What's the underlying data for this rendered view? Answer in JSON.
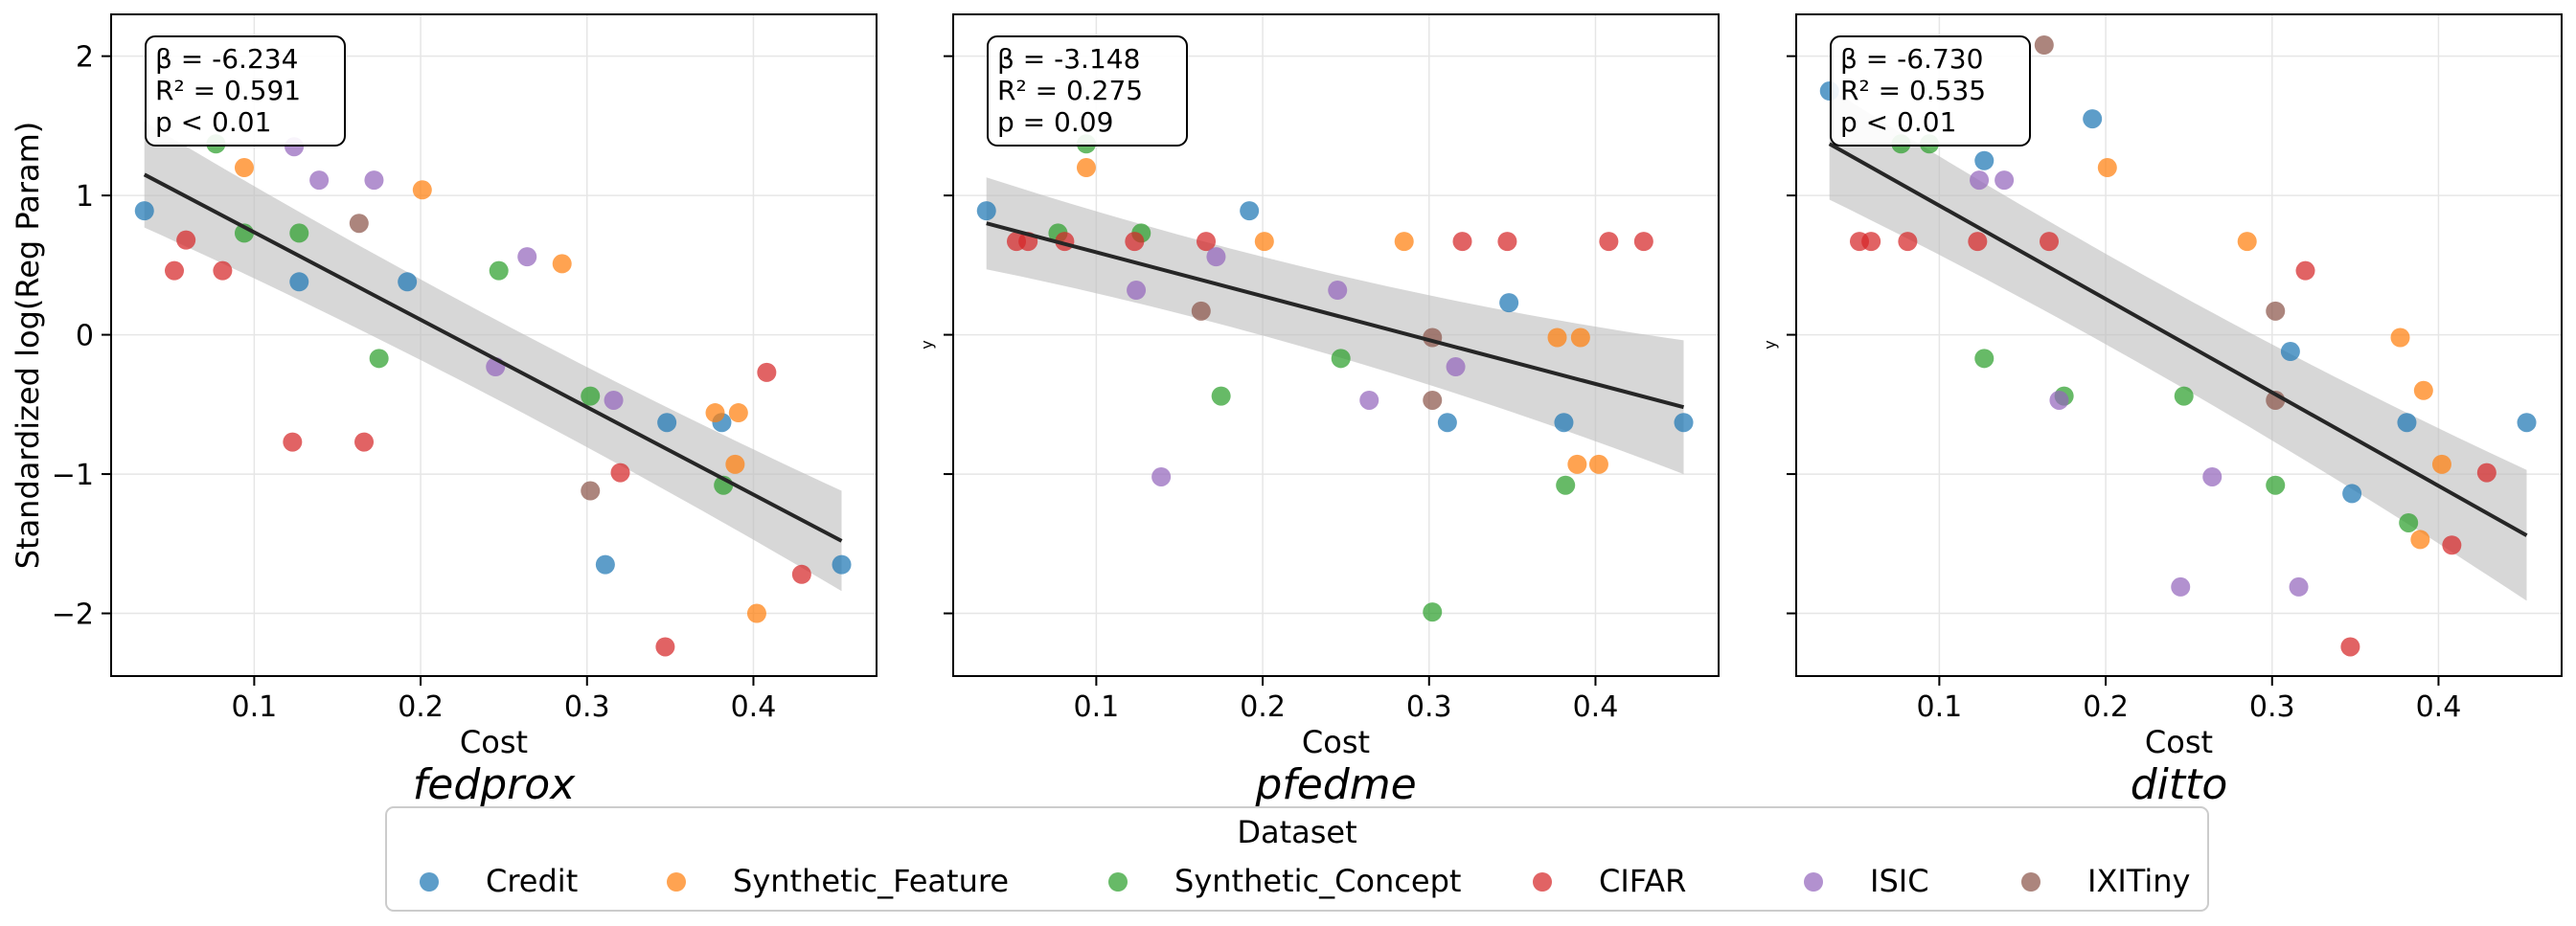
{
  "chart_data": [
    {
      "type": "scatter",
      "title": "fedprox",
      "xlabel": "Cost",
      "ylabel": "Standardized log(Reg Param)",
      "xlim": [
        0.014,
        0.474
      ],
      "ylim": [
        -2.45,
        2.3
      ],
      "xticks": [
        0.1,
        0.2,
        0.3,
        0.4
      ],
      "yticks": [
        -2,
        -1,
        0,
        1,
        2
      ],
      "xtick_labels": [
        "0.1",
        "0.2",
        "0.3",
        "0.4"
      ],
      "ytick_labels": [
        "−2",
        "−1",
        "0",
        "1",
        "2"
      ],
      "grid": true,
      "stats": [
        "β = -6.234",
        "R² = 0.591",
        "p < 0.01"
      ],
      "fit": {
        "x": [
          0.034,
          0.453
        ],
        "y": [
          1.15,
          -1.48
        ],
        "band_half_width": [
          0.38,
          0.36
        ]
      },
      "series": [
        {
          "name": "Credit",
          "x": [
            0.034,
            0.127,
            0.192,
            0.311,
            0.348,
            0.381,
            0.453
          ],
          "y": [
            0.89,
            0.38,
            0.38,
            -1.65,
            -0.63,
            -0.63,
            -1.65
          ]
        },
        {
          "name": "Synthetic_Feature",
          "x": [
            0.094,
            0.201,
            0.285,
            0.377,
            0.389,
            0.391,
            0.402
          ],
          "y": [
            1.2,
            1.04,
            0.51,
            -0.56,
            -0.93,
            -0.56,
            -2.0
          ]
        },
        {
          "name": "Synthetic_Concept",
          "x": [
            0.077,
            0.094,
            0.127,
            0.175,
            0.247,
            0.302,
            0.382
          ],
          "y": [
            1.37,
            0.73,
            0.73,
            -0.17,
            0.46,
            -0.44,
            -1.08
          ]
        },
        {
          "name": "CIFAR",
          "x": [
            0.052,
            0.059,
            0.081,
            0.123,
            0.166,
            0.32,
            0.347,
            0.408,
            0.429
          ],
          "y": [
            0.46,
            0.68,
            0.46,
            -0.77,
            -0.77,
            -0.99,
            -2.24,
            -0.27,
            -1.72
          ]
        },
        {
          "name": "ISIC",
          "x": [
            0.124,
            0.139,
            0.172,
            0.245,
            0.264,
            0.316
          ],
          "y": [
            1.35,
            1.11,
            1.11,
            -0.23,
            0.56,
            -0.47
          ]
        },
        {
          "name": "IXITiny",
          "x": [
            0.163,
            0.302
          ],
          "y": [
            0.8,
            -1.12
          ]
        }
      ]
    },
    {
      "type": "scatter",
      "title": "pfedme",
      "xlabel": "Cost",
      "ylabel": "y",
      "xlim": [
        0.014,
        0.474
      ],
      "ylim": [
        -2.45,
        2.3
      ],
      "xticks": [
        0.1,
        0.2,
        0.3,
        0.4
      ],
      "yticks": [
        -2,
        -1,
        0,
        1,
        2
      ],
      "xtick_labels": [
        "0.1",
        "0.2",
        "0.3",
        "0.4"
      ],
      "ytick_labels": [],
      "grid": true,
      "stats": [
        "β = -3.148",
        "R² = 0.275",
        "p = 0.09"
      ],
      "fit": {
        "x": [
          0.034,
          0.453
        ],
        "y": [
          0.8,
          -0.52
        ],
        "band_half_width": [
          0.33,
          0.48
        ]
      },
      "series": [
        {
          "name": "Credit",
          "x": [
            0.034,
            0.192,
            0.311,
            0.348,
            0.381,
            0.453
          ],
          "y": [
            0.89,
            0.89,
            -0.63,
            0.23,
            -0.63,
            -0.63
          ]
        },
        {
          "name": "Synthetic_Feature",
          "x": [
            0.094,
            0.201,
            0.285,
            0.377,
            0.389,
            0.391,
            0.402
          ],
          "y": [
            1.2,
            0.67,
            0.67,
            -0.02,
            -0.93,
            -0.02,
            -0.93
          ]
        },
        {
          "name": "Synthetic_Concept",
          "x": [
            0.077,
            0.094,
            0.127,
            0.175,
            0.247,
            0.302,
            0.382
          ],
          "y": [
            0.73,
            1.37,
            0.73,
            -0.44,
            -0.17,
            -1.99,
            -1.08
          ]
        },
        {
          "name": "CIFAR",
          "x": [
            0.052,
            0.059,
            0.081,
            0.123,
            0.166,
            0.32,
            0.347,
            0.408,
            0.429
          ],
          "y": [
            0.67,
            0.67,
            0.67,
            0.67,
            0.67,
            0.67,
            0.67,
            0.67,
            0.67
          ]
        },
        {
          "name": "ISIC",
          "x": [
            0.124,
            0.139,
            0.172,
            0.245,
            0.264,
            0.316
          ],
          "y": [
            0.32,
            -1.02,
            0.56,
            0.32,
            -0.47,
            -0.23
          ]
        },
        {
          "name": "IXITiny",
          "x": [
            0.163,
            0.302,
            0.302
          ],
          "y": [
            0.17,
            -0.02,
            -0.47
          ]
        }
      ]
    },
    {
      "type": "scatter",
      "title": "ditto",
      "xlabel": "Cost",
      "ylabel": "y",
      "xlim": [
        0.014,
        0.474
      ],
      "ylim": [
        -2.45,
        2.3
      ],
      "xticks": [
        0.1,
        0.2,
        0.3,
        0.4
      ],
      "yticks": [
        -2,
        -1,
        0,
        1,
        2
      ],
      "xtick_labels": [
        "0.1",
        "0.2",
        "0.3",
        "0.4"
      ],
      "ytick_labels": [],
      "grid": true,
      "stats": [
        "β = -6.730",
        "R² = 0.535",
        "p < 0.01"
      ],
      "fit": {
        "x": [
          0.034,
          0.453
        ],
        "y": [
          1.37,
          -1.44
        ],
        "band_half_width": [
          0.4,
          0.47
        ]
      },
      "series": [
        {
          "name": "Credit",
          "x": [
            0.034,
            0.127,
            0.192,
            0.311,
            0.348,
            0.381,
            0.453
          ],
          "y": [
            1.75,
            1.25,
            1.55,
            -0.12,
            -1.14,
            -0.63,
            -0.63
          ]
        },
        {
          "name": "Synthetic_Feature",
          "x": [
            0.201,
            0.285,
            0.377,
            0.389,
            0.391,
            0.402
          ],
          "y": [
            1.2,
            0.67,
            -0.02,
            -1.47,
            -0.4,
            -0.93
          ]
        },
        {
          "name": "Synthetic_Concept",
          "x": [
            0.077,
            0.094,
            0.127,
            0.175,
            0.247,
            0.302,
            0.382
          ],
          "y": [
            1.37,
            1.37,
            -0.17,
            -0.44,
            -0.44,
            -1.08,
            -1.35
          ]
        },
        {
          "name": "CIFAR",
          "x": [
            0.052,
            0.059,
            0.081,
            0.123,
            0.166,
            0.32,
            0.347,
            0.408,
            0.429
          ],
          "y": [
            0.67,
            0.67,
            0.67,
            0.67,
            0.67,
            0.46,
            -2.24,
            -1.51,
            -0.99
          ]
        },
        {
          "name": "ISIC",
          "x": [
            0.124,
            0.139,
            0.172,
            0.245,
            0.264,
            0.316
          ],
          "y": [
            1.11,
            1.11,
            -0.47,
            -1.81,
            -1.02,
            -1.81
          ]
        },
        {
          "name": "IXITiny",
          "x": [
            0.163,
            0.302,
            0.302
          ],
          "y": [
            2.08,
            0.17,
            -0.47
          ]
        }
      ]
    }
  ],
  "legend": {
    "title": "Dataset",
    "position": "bottom-center",
    "entries": [
      {
        "name": "Credit",
        "color": "#1f77b4"
      },
      {
        "name": "Synthetic_Feature",
        "color": "#ff7f0e"
      },
      {
        "name": "Synthetic_Concept",
        "color": "#2ca02c"
      },
      {
        "name": "CIFAR",
        "color": "#d62728"
      },
      {
        "name": "ISIC",
        "color": "#9467bd"
      },
      {
        "name": "IXITiny",
        "color": "#8c564b"
      }
    ]
  },
  "colors": {
    "Credit": "#1f77b4",
    "Synthetic_Feature": "#ff7f0e",
    "Synthetic_Concept": "#2ca02c",
    "CIFAR": "#d62728",
    "ISIC": "#9467bd",
    "IXITiny": "#8c564b",
    "fit_line": "#262626",
    "band": "#bdbdbd"
  }
}
